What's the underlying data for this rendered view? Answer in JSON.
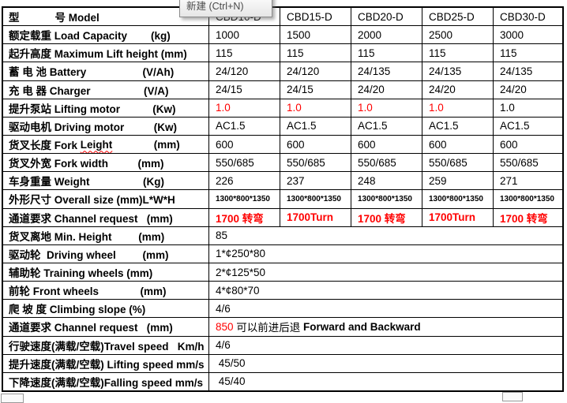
{
  "tooltip": {
    "label": "新建 (Ctrl+N)"
  },
  "colors": {
    "accent_red": "#ff0000",
    "table_border": "#000000",
    "tooltip_border": "#8a8a8a"
  },
  "table": {
    "rows": [
      {
        "name": "header-row",
        "label_parts": [
          {
            "t": "型            号 Model"
          }
        ],
        "cells": [
          {
            "parts": [
              {
                "t": "CBD10-D"
              }
            ]
          },
          {
            "parts": [
              {
                "t": "CBD15-D"
              }
            ]
          },
          {
            "parts": [
              {
                "t": "CBD20-D"
              }
            ]
          },
          {
            "parts": [
              {
                "t": "CBD25-D"
              }
            ]
          },
          {
            "parts": [
              {
                "t": "CBD30-D"
              }
            ]
          }
        ]
      },
      {
        "name": "row-load-capacity",
        "label_parts": [
          {
            "t": "额定载重 Load Capacity        (kg)"
          }
        ],
        "cells": [
          {
            "parts": [
              {
                "t": "1000"
              }
            ]
          },
          {
            "parts": [
              {
                "t": "1500"
              }
            ]
          },
          {
            "parts": [
              {
                "t": "2000"
              }
            ]
          },
          {
            "parts": [
              {
                "t": "2500"
              }
            ]
          },
          {
            "parts": [
              {
                "t": "3000"
              }
            ]
          }
        ]
      },
      {
        "name": "row-lift-height",
        "label_parts": [
          {
            "t": "起升高度 Maximum Lift height (mm)"
          }
        ],
        "cells": [
          {
            "parts": [
              {
                "t": "115"
              }
            ]
          },
          {
            "parts": [
              {
                "t": "115"
              }
            ]
          },
          {
            "parts": [
              {
                "t": "115"
              }
            ]
          },
          {
            "parts": [
              {
                "t": "115"
              }
            ]
          },
          {
            "parts": [
              {
                "t": "115"
              }
            ]
          }
        ]
      },
      {
        "name": "row-battery",
        "label_parts": [
          {
            "t": "蓄 电 池 Battery                   (V/Ah)"
          }
        ],
        "cells": [
          {
            "parts": [
              {
                "t": "24/120"
              }
            ]
          },
          {
            "parts": [
              {
                "t": "24/120"
              }
            ]
          },
          {
            "parts": [
              {
                "t": "24/135"
              }
            ]
          },
          {
            "parts": [
              {
                "t": "24/135"
              }
            ]
          },
          {
            "parts": [
              {
                "t": "24/135"
              }
            ]
          }
        ]
      },
      {
        "name": "row-charger",
        "label_parts": [
          {
            "t": "充 电 器 Charger                  (V/A)"
          }
        ],
        "cells": [
          {
            "parts": [
              {
                "t": "24/15"
              }
            ]
          },
          {
            "parts": [
              {
                "t": "24/15"
              }
            ]
          },
          {
            "parts": [
              {
                "t": "24/20"
              }
            ]
          },
          {
            "parts": [
              {
                "t": "24/20"
              }
            ]
          },
          {
            "parts": [
              {
                "t": "24/20"
              }
            ]
          }
        ]
      },
      {
        "name": "row-lifting-motor",
        "label_parts": [
          {
            "t": "提升泵站 Lifting motor           (Kw)"
          }
        ],
        "cells": [
          {
            "parts": [
              {
                "t": "1.0",
                "red": true
              }
            ]
          },
          {
            "parts": [
              {
                "t": "1.0",
                "red": true
              }
            ]
          },
          {
            "parts": [
              {
                "t": "1.0",
                "red": true
              }
            ]
          },
          {
            "parts": [
              {
                "t": "1.0",
                "red": true
              }
            ]
          },
          {
            "parts": [
              {
                "t": "1.0"
              }
            ]
          }
        ]
      },
      {
        "name": "row-driving-motor",
        "label_parts": [
          {
            "t": "驱动电机 Driving motor          (Kw)"
          }
        ],
        "cells": [
          {
            "parts": [
              {
                "t": "AC1.5"
              }
            ]
          },
          {
            "parts": [
              {
                "t": "AC1.5"
              }
            ]
          },
          {
            "parts": [
              {
                "t": "AC1.5"
              }
            ]
          },
          {
            "parts": [
              {
                "t": "AC1.5"
              }
            ]
          },
          {
            "parts": [
              {
                "t": "AC1.5"
              }
            ]
          }
        ]
      },
      {
        "name": "row-fork-length",
        "label_parts": [
          {
            "t": "货叉长度 Fork "
          },
          {
            "t": "Leight",
            "wavy": true
          },
          {
            "t": "              (mm)"
          }
        ],
        "cells": [
          {
            "parts": [
              {
                "t": "600"
              }
            ]
          },
          {
            "parts": [
              {
                "t": "600"
              }
            ]
          },
          {
            "parts": [
              {
                "t": "600"
              }
            ]
          },
          {
            "parts": [
              {
                "t": "600"
              }
            ]
          },
          {
            "parts": [
              {
                "t": "600"
              }
            ]
          }
        ]
      },
      {
        "name": "row-fork-width",
        "label_parts": [
          {
            "t": "货叉外宽 Fork width          (mm)"
          }
        ],
        "cells": [
          {
            "parts": [
              {
                "t": "550/685"
              }
            ]
          },
          {
            "parts": [
              {
                "t": "550/685"
              }
            ]
          },
          {
            "parts": [
              {
                "t": "550/685"
              }
            ]
          },
          {
            "parts": [
              {
                "t": "550/685"
              }
            ]
          },
          {
            "parts": [
              {
                "t": "550/685"
              }
            ]
          }
        ]
      },
      {
        "name": "row-weight",
        "label_parts": [
          {
            "t": "车身重量 Weight                  (Kg)"
          }
        ],
        "cells": [
          {
            "parts": [
              {
                "t": "226"
              }
            ]
          },
          {
            "parts": [
              {
                "t": "237"
              }
            ]
          },
          {
            "parts": [
              {
                "t": "248"
              }
            ]
          },
          {
            "parts": [
              {
                "t": "259"
              }
            ]
          },
          {
            "parts": [
              {
                "t": "271"
              }
            ]
          }
        ]
      },
      {
        "name": "row-overall-size",
        "label_parts": [
          {
            "t": "外形尺寸 Overall size (mm)L*W*H"
          }
        ],
        "cells": [
          {
            "parts": [
              {
                "t": "1300*800*1350",
                "small": true
              }
            ]
          },
          {
            "parts": [
              {
                "t": "1300*800*1350",
                "small": true
              }
            ]
          },
          {
            "parts": [
              {
                "t": "1300*800*1350",
                "small": true
              }
            ]
          },
          {
            "parts": [
              {
                "t": "1300*800*1350",
                "small": true
              }
            ]
          },
          {
            "parts": [
              {
                "t": "1300*800*1350",
                "small": true
              }
            ]
          }
        ]
      },
      {
        "name": "row-channel-request-turn",
        "label_parts": [
          {
            "t": "通道要求 Channel request   (mm)"
          }
        ],
        "cells": [
          {
            "parts": [
              {
                "t": "1700 转弯",
                "red": true,
                "bold": true
              }
            ]
          },
          {
            "parts": [
              {
                "t": "1700Turn",
                "red": true,
                "bold": true
              }
            ]
          },
          {
            "parts": [
              {
                "t": "1700 转弯",
                "red": true,
                "bold": true
              }
            ]
          },
          {
            "parts": [
              {
                "t": "1700Turn",
                "red": true,
                "bold": true
              }
            ]
          },
          {
            "parts": [
              {
                "t": "1700 转弯",
                "red": true,
                "bold": true
              }
            ]
          }
        ]
      },
      {
        "name": "row-min-height",
        "span": true,
        "label_parts": [
          {
            "t": "货叉离地 Min. Height         (mm)"
          }
        ],
        "cells": [
          {
            "parts": [
              {
                "t": "85"
              }
            ]
          }
        ]
      },
      {
        "name": "row-driving-wheel",
        "span": true,
        "label_parts": [
          {
            "t": "驱动轮  Driving wheel         (mm)"
          }
        ],
        "cells": [
          {
            "parts": [
              {
                "t": "1*¢250*80"
              }
            ]
          }
        ]
      },
      {
        "name": "row-training-wheels",
        "span": true,
        "label_parts": [
          {
            "t": "辅助轮 Training wheels (mm)"
          }
        ],
        "cells": [
          {
            "parts": [
              {
                "t": "2*¢125*50"
              }
            ]
          }
        ]
      },
      {
        "name": "row-front-wheels",
        "span": true,
        "label_parts": [
          {
            "t": "前轮 Front wheels              (mm)"
          }
        ],
        "cells": [
          {
            "parts": [
              {
                "t": "4*¢80*70"
              }
            ]
          }
        ]
      },
      {
        "name": "row-climbing-slope",
        "span": true,
        "label_parts": [
          {
            "t": "爬 坡 度 Climbing slope (%)"
          }
        ],
        "cells": [
          {
            "parts": [
              {
                "t": "4/6"
              }
            ]
          }
        ]
      },
      {
        "name": "row-channel-request-straight",
        "span": true,
        "label_parts": [
          {
            "t": "通道要求 Channel request   (mm)"
          }
        ],
        "cells": [
          {
            "parts": [
              {
                "t": "850 ",
                "red": true
              },
              {
                "t": "可以前进后退 "
              },
              {
                "t": "Forward and Backward",
                "bold": true
              }
            ]
          }
        ]
      },
      {
        "name": "row-travel-speed",
        "span": true,
        "label_parts": [
          {
            "t": "行驶速度(满载/空载)Travel speed   Km/h"
          }
        ],
        "cells": [
          {
            "parts": [
              {
                "t": "4/6"
              }
            ]
          }
        ]
      },
      {
        "name": "row-lifting-speed",
        "span": true,
        "label_parts": [
          {
            "t": "提升速度(满载/空载) Lifting speed mm/s"
          }
        ],
        "cells": [
          {
            "parts": [
              {
                "t": " 45/50"
              }
            ]
          }
        ]
      },
      {
        "name": "row-falling-speed",
        "span": true,
        "label_parts": [
          {
            "t": "下降速度(满载/空载)Falling speed mm/s"
          }
        ],
        "cells": [
          {
            "parts": [
              {
                "t": " 45/40"
              }
            ]
          }
        ]
      }
    ]
  }
}
